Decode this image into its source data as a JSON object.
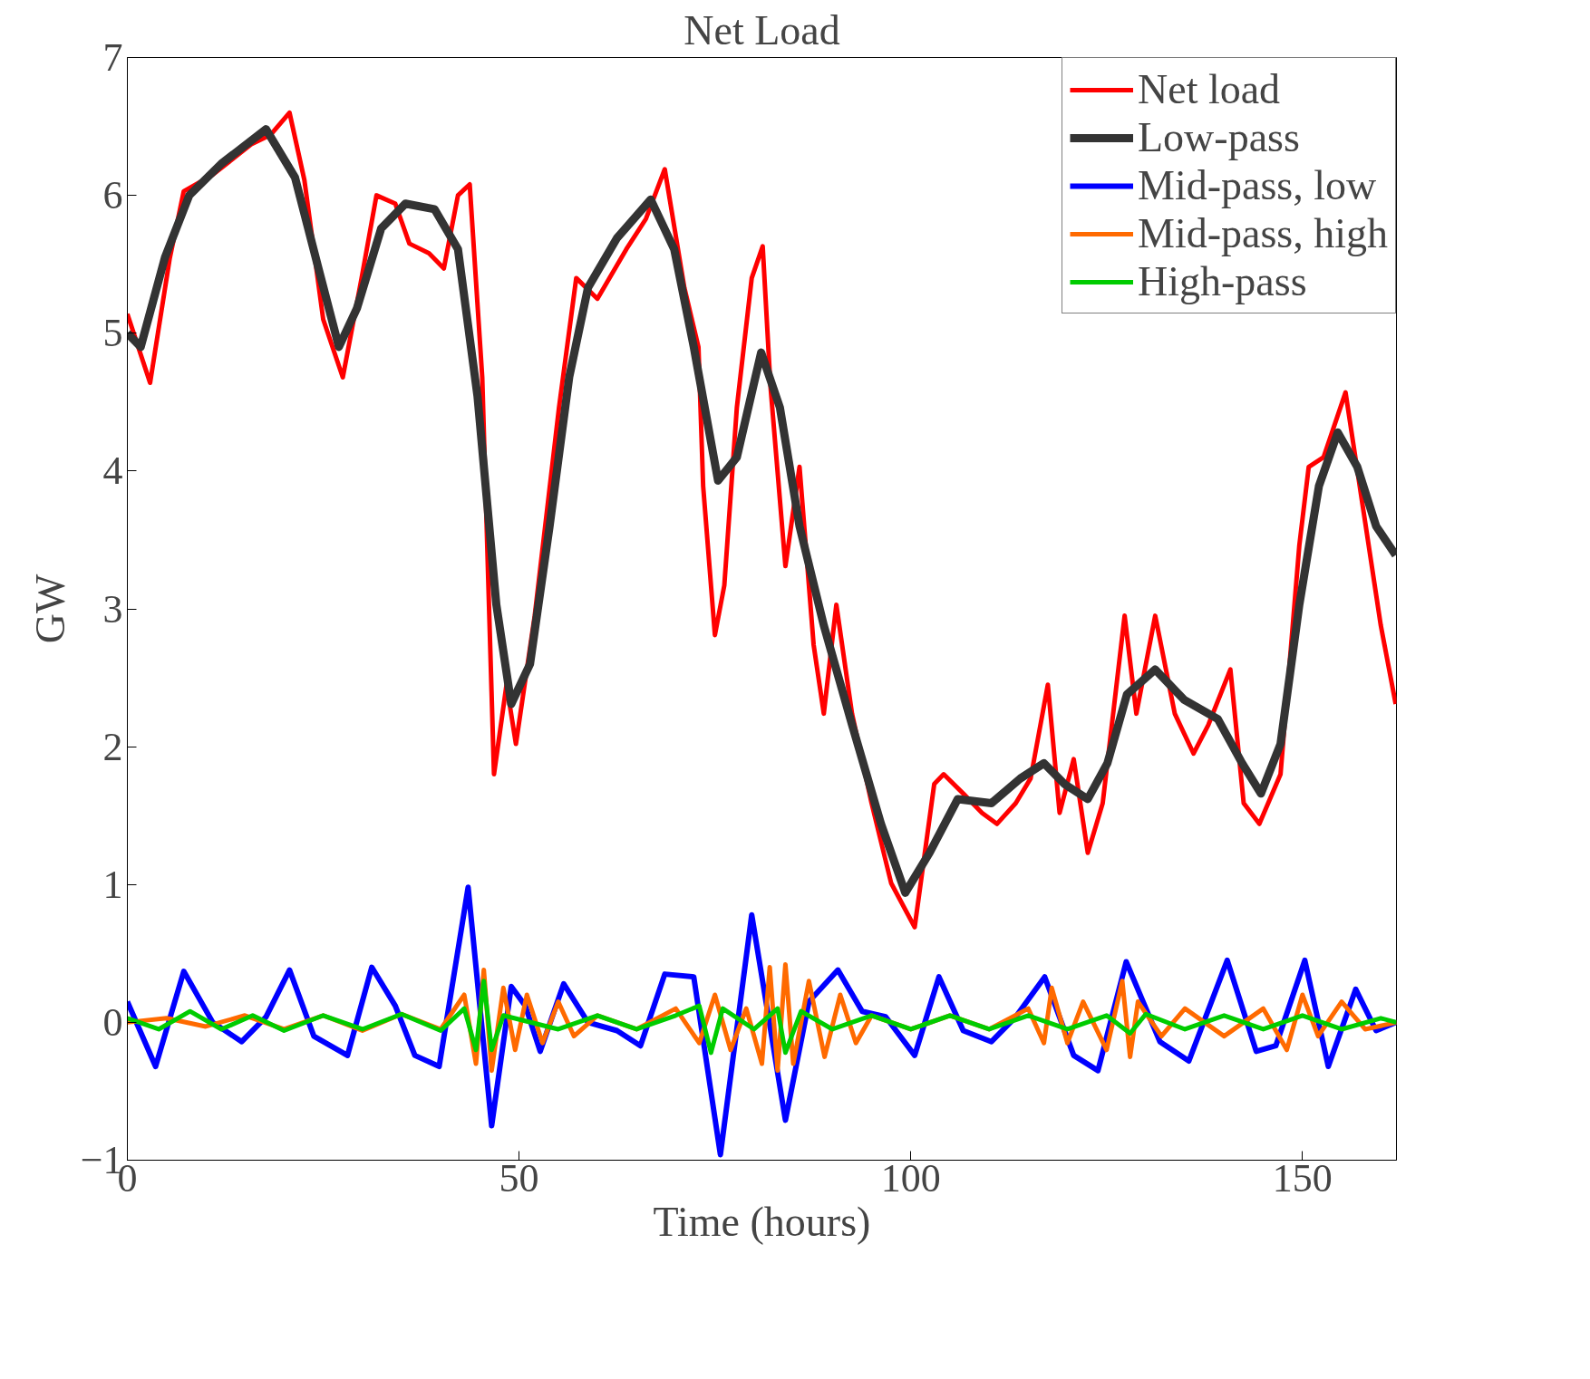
{
  "chart_data": {
    "type": "line",
    "title": "Net Load",
    "xlabel": "Time (hours)",
    "ylabel": "GW",
    "xlim": [
      0,
      162
    ],
    "ylim": [
      -1,
      7
    ],
    "xticks": [
      0,
      50,
      100,
      150
    ],
    "yticks": [
      -1,
      0,
      1,
      2,
      3,
      4,
      5,
      6,
      7
    ],
    "grid": false,
    "legend": "top right",
    "marker": "none",
    "line_style": "solid",
    "series": [
      {
        "name": "Net load",
        "color": "#ff0000",
        "x": [
          0,
          2.9,
          5.4,
          7.2,
          10.9,
          15.8,
          18.3,
          20.7,
          22.6,
          25,
          27.5,
          29.9,
          31.8,
          34.2,
          36,
          38.5,
          40.4,
          42.2,
          43.7,
          45.3,
          46.8,
          48.4,
          49.6,
          52,
          55.1,
          57.3,
          60,
          63.7,
          66.2,
          68.6,
          71.1,
          72.9,
          73.5,
          75,
          76.2,
          77.8,
          79.7,
          81.1,
          82.1,
          84,
          85.8,
          87.6,
          88.9,
          90.5,
          92.5,
          95,
          97.5,
          100.5,
          103,
          104.2,
          106.7,
          109.1,
          111,
          113.4,
          115.3,
          117.5,
          119,
          120.8,
          122.6,
          124.5,
          127.3,
          128.8,
          131.2,
          133.7,
          136.1,
          138,
          140.8,
          142.5,
          144.5,
          147.2,
          149.6,
          150.8,
          152.7,
          155.5,
          160,
          161.9
        ],
        "values": [
          5.14,
          4.64,
          5.54,
          6.03,
          6.15,
          6.37,
          6.44,
          6.6,
          6.11,
          5.1,
          4.68,
          5.4,
          6.0,
          5.94,
          5.65,
          5.58,
          5.47,
          6.0,
          6.08,
          4.68,
          1.8,
          2.45,
          2.02,
          2.95,
          4.46,
          5.4,
          5.25,
          5.61,
          5.83,
          6.19,
          5.33,
          4.9,
          3.89,
          2.81,
          3.17,
          4.46,
          5.4,
          5.63,
          4.61,
          3.31,
          4.03,
          2.74,
          2.24,
          3.03,
          2.24,
          1.59,
          1.01,
          0.69,
          1.73,
          1.8,
          1.66,
          1.52,
          1.44,
          1.59,
          1.77,
          2.45,
          1.52,
          1.91,
          1.23,
          1.59,
          2.95,
          2.24,
          2.95,
          2.24,
          1.95,
          2.16,
          2.56,
          1.59,
          1.44,
          1.8,
          3.46,
          4.03,
          4.1,
          4.57,
          2.88,
          2.31
        ]
      },
      {
        "name": "Low-pass",
        "color": "#333333",
        "x": [
          0,
          1.7,
          4.8,
          7.9,
          12,
          17.7,
          21.4,
          24.4,
          27,
          29.3,
          32.4,
          35.5,
          39.2,
          42.2,
          44.7,
          47.1,
          49,
          51.4,
          53.9,
          56.4,
          58.8,
          62.5,
          66.8,
          69.8,
          72.3,
          75.4,
          77.8,
          80.9,
          83.3,
          85.8,
          88.9,
          92.5,
          96.2,
          99.3,
          102.4,
          106,
          110.3,
          114,
          117,
          119.6,
          122.6,
          125.1,
          127.6,
          131.2,
          134.9,
          139.2,
          142.3,
          144.7,
          147.2,
          149.6,
          152.1,
          154.5,
          157,
          159.4,
          161.9
        ],
        "values": [
          5.0,
          4.9,
          5.55,
          6.0,
          6.23,
          6.48,
          6.13,
          5.47,
          4.9,
          5.18,
          5.76,
          5.94,
          5.9,
          5.61,
          4.54,
          3.03,
          2.31,
          2.6,
          3.6,
          4.68,
          5.33,
          5.69,
          5.97,
          5.61,
          4.9,
          3.93,
          4.1,
          4.86,
          4.46,
          3.6,
          2.88,
          2.16,
          1.44,
          0.94,
          1.23,
          1.62,
          1.59,
          1.77,
          1.88,
          1.73,
          1.62,
          1.88,
          2.38,
          2.56,
          2.34,
          2.2,
          1.88,
          1.66,
          2.02,
          3.03,
          3.89,
          4.28,
          4.03,
          3.6,
          3.39
        ]
      },
      {
        "name": "Mid-pass, low",
        "color": "#0000ff",
        "x": [
          0,
          3.6,
          7.2,
          10.9,
          14.6,
          17.7,
          20.7,
          23.8,
          28.1,
          31.2,
          34.2,
          36.7,
          39.8,
          43.5,
          46.5,
          49,
          50.8,
          52.7,
          55.7,
          58.8,
          62.5,
          65.5,
          68.6,
          72.3,
          75.7,
          79.7,
          84,
          87,
          90.7,
          93.8,
          96.8,
          100.5,
          103.6,
          106.7,
          110.3,
          113.4,
          117.1,
          120.8,
          123.9,
          127.5,
          131.8,
          135.5,
          140.4,
          144.1,
          146.6,
          150.3,
          153.3,
          156.8,
          159.4,
          161.9
        ],
        "values": [
          0.15,
          -0.32,
          0.37,
          0,
          -0.14,
          0.04,
          0.38,
          -0.1,
          -0.24,
          0.4,
          0.12,
          -0.24,
          -0.32,
          0.98,
          -0.75,
          0.26,
          0.12,
          -0.21,
          0.28,
          0,
          -0.06,
          -0.17,
          0.35,
          0.33,
          -0.96,
          0.78,
          -0.71,
          0.15,
          0.38,
          0.08,
          0.04,
          -0.24,
          0.33,
          -0.06,
          -0.14,
          0.04,
          0.33,
          -0.24,
          -0.35,
          0.44,
          -0.14,
          -0.28,
          0.45,
          -0.21,
          -0.17,
          0.45,
          -0.32,
          0.24,
          -0.06,
          0
        ]
      },
      {
        "name": "Mid-pass, high",
        "color": "#ff6a00",
        "x": [
          0,
          5,
          10,
          15,
          20,
          25,
          30,
          35,
          40,
          43,
          44.5,
          45.5,
          46.5,
          48,
          49.5,
          51,
          53,
          55,
          57,
          60,
          65,
          70,
          73,
          75,
          77,
          79,
          81,
          82,
          83,
          84,
          85,
          87,
          89,
          91,
          93,
          95,
          100,
          105,
          110,
          115,
          117,
          118,
          120,
          122,
          125,
          127,
          128,
          129,
          132,
          135,
          140,
          145,
          148,
          150,
          152,
          155,
          158,
          162
        ],
        "values": [
          0,
          0.03,
          -0.03,
          0.05,
          -0.05,
          0.05,
          -0.06,
          0.06,
          -0.05,
          0.2,
          -0.3,
          0.38,
          -0.35,
          0.25,
          -0.2,
          0.2,
          -0.15,
          0.15,
          -0.1,
          0.05,
          -0.05,
          0.1,
          -0.15,
          0.2,
          -0.2,
          0.1,
          -0.3,
          0.4,
          -0.35,
          0.42,
          -0.3,
          0.3,
          -0.25,
          0.2,
          -0.15,
          0.05,
          -0.05,
          0.05,
          -0.05,
          0.1,
          -0.15,
          0.25,
          -0.15,
          0.15,
          -0.2,
          0.3,
          -0.25,
          0.15,
          -0.1,
          0.1,
          -0.1,
          0.1,
          -0.2,
          0.2,
          -0.1,
          0.15,
          -0.05,
          0
        ]
      },
      {
        "name": "High-pass",
        "color": "#00cc00",
        "x": [
          0,
          4,
          8,
          12,
          16,
          20,
          25,
          30,
          35,
          40,
          43,
          44.5,
          45.5,
          46.5,
          48,
          55,
          60,
          65,
          70,
          73,
          74.5,
          76,
          80,
          83,
          84,
          86,
          90,
          95,
          100,
          105,
          110,
          115,
          120,
          125,
          128,
          130,
          135,
          140,
          145,
          150,
          155,
          160,
          162
        ],
        "values": [
          0.03,
          -0.05,
          0.08,
          -0.05,
          0.05,
          -0.06,
          0.05,
          -0.05,
          0.06,
          -0.06,
          0.1,
          -0.2,
          0.3,
          -0.2,
          0.05,
          -0.05,
          0.05,
          -0.05,
          0.05,
          0.12,
          -0.22,
          0.1,
          -0.05,
          0.1,
          -0.22,
          0.08,
          -0.05,
          0.05,
          -0.05,
          0.05,
          -0.05,
          0.05,
          -0.05,
          0.05,
          -0.08,
          0.06,
          -0.05,
          0.05,
          -0.05,
          0.05,
          -0.05,
          0.03,
          0
        ]
      }
    ]
  }
}
